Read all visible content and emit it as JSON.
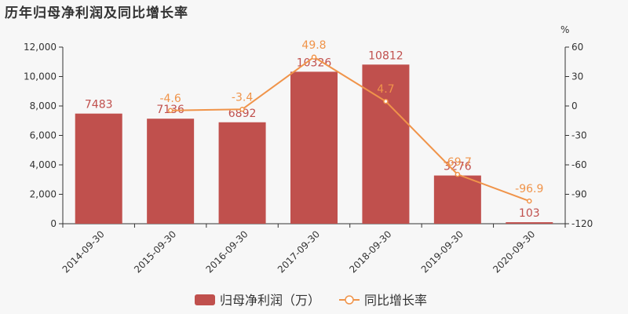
{
  "title": "历年归母净利润及同比增长率",
  "colors": {
    "bar": "#c0504d",
    "line": "#f0944a",
    "axis": "#333333",
    "grid": "#dddddd"
  },
  "chart_data": {
    "type": "bar",
    "title": "历年归母净利润及同比增长率",
    "categories": [
      "2014-09-30",
      "2015-09-30",
      "2016-09-30",
      "2017-09-30",
      "2018-09-30",
      "2019-09-30",
      "2020-09-30"
    ],
    "series": [
      {
        "name": "归母净利润（万）",
        "type": "bar",
        "axis": "left",
        "values": [
          7483,
          7136,
          6892,
          10326,
          10812,
          3276,
          103
        ],
        "labels": [
          "7483",
          "7136",
          "6892",
          "10326",
          "10812",
          "3276",
          "103"
        ]
      },
      {
        "name": "同比增长率",
        "type": "line",
        "axis": "right",
        "values": [
          null,
          -4.6,
          -3.4,
          49.8,
          4.7,
          -69.7,
          -96.9
        ],
        "labels": [
          "",
          "-4.6",
          "-3.4",
          "49.8",
          "4.7",
          "-69.7",
          "-96.9"
        ]
      }
    ],
    "y_left": {
      "ylim": [
        0,
        12000
      ],
      "ticks": [
        0,
        2000,
        4000,
        6000,
        8000,
        10000,
        12000
      ],
      "tick_labels": [
        "0",
        "2,000",
        "4,000",
        "6,000",
        "8,000",
        "10,000",
        "12,000"
      ]
    },
    "y_right": {
      "ylim": [
        -120,
        60
      ],
      "ticks": [
        -120,
        -90,
        -60,
        -30,
        0,
        30,
        60
      ],
      "tick_labels": [
        "-120",
        "-90",
        "-60",
        "-30",
        "0",
        "30",
        "60"
      ],
      "unit": "%"
    },
    "legend_placement": "bottom-center",
    "grid": false
  }
}
